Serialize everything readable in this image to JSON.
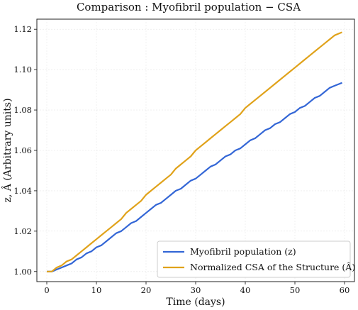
{
  "chart_data": {
    "type": "line",
    "title": "Comparison :  Myofibril population − CSA",
    "xlabel": "Time (days)",
    "ylabel": "z,  Â (Arbitrary units)",
    "xlim": [
      -2,
      62
    ],
    "ylim": [
      0.995,
      1.125
    ],
    "xticks": [
      0,
      10,
      20,
      30,
      40,
      50,
      60
    ],
    "yticks": [
      1.0,
      1.02,
      1.04,
      1.06,
      1.08,
      1.1,
      1.12
    ],
    "grid": true,
    "legend_position": "lower-right",
    "series": [
      {
        "name": "Myofibril population (z)",
        "color": "#3366d6",
        "x": [
          0,
          1,
          2,
          3,
          4,
          5,
          6,
          7,
          8,
          9,
          10,
          11,
          12,
          13,
          14,
          15,
          16,
          17,
          18,
          19,
          20,
          21,
          22,
          23,
          24,
          25,
          26,
          27,
          28,
          29,
          30,
          31,
          32,
          33,
          34,
          35,
          36,
          37,
          38,
          39,
          40,
          41,
          42,
          43,
          44,
          45,
          46,
          47,
          48,
          49,
          50,
          51,
          52,
          53,
          54,
          55,
          56,
          57,
          58,
          59,
          59.5
        ],
        "y": [
          1.0,
          1.0,
          1.001,
          1.002,
          1.003,
          1.004,
          1.006,
          1.007,
          1.009,
          1.01,
          1.012,
          1.013,
          1.015,
          1.017,
          1.019,
          1.02,
          1.022,
          1.024,
          1.025,
          1.027,
          1.029,
          1.031,
          1.033,
          1.034,
          1.036,
          1.038,
          1.04,
          1.041,
          1.043,
          1.045,
          1.046,
          1.048,
          1.05,
          1.052,
          1.053,
          1.055,
          1.057,
          1.058,
          1.06,
          1.061,
          1.063,
          1.065,
          1.066,
          1.068,
          1.07,
          1.071,
          1.073,
          1.074,
          1.076,
          1.078,
          1.079,
          1.081,
          1.082,
          1.084,
          1.086,
          1.087,
          1.089,
          1.091,
          1.092,
          1.093,
          1.0935
        ]
      },
      {
        "name": "Normalized CSA of the Structure (Â)",
        "color": "#e0a21a",
        "x": [
          0,
          1,
          2,
          3,
          4,
          5,
          6,
          7,
          8,
          9,
          10,
          11,
          12,
          13,
          14,
          15,
          16,
          17,
          18,
          19,
          20,
          21,
          22,
          23,
          24,
          25,
          26,
          27,
          28,
          29,
          30,
          31,
          32,
          33,
          34,
          35,
          36,
          37,
          38,
          39,
          40,
          41,
          42,
          43,
          44,
          45,
          46,
          47,
          48,
          49,
          50,
          51,
          52,
          53,
          54,
          55,
          56,
          57,
          58,
          59,
          59.5
        ],
        "y": [
          1.0,
          1.0,
          1.002,
          1.003,
          1.005,
          1.006,
          1.008,
          1.01,
          1.012,
          1.014,
          1.016,
          1.018,
          1.02,
          1.022,
          1.024,
          1.026,
          1.029,
          1.031,
          1.033,
          1.035,
          1.038,
          1.04,
          1.042,
          1.044,
          1.046,
          1.048,
          1.051,
          1.053,
          1.055,
          1.057,
          1.06,
          1.062,
          1.064,
          1.066,
          1.068,
          1.07,
          1.072,
          1.074,
          1.076,
          1.078,
          1.081,
          1.083,
          1.085,
          1.087,
          1.089,
          1.091,
          1.093,
          1.095,
          1.097,
          1.099,
          1.101,
          1.103,
          1.105,
          1.107,
          1.109,
          1.111,
          1.113,
          1.115,
          1.117,
          1.118,
          1.1185
        ]
      }
    ]
  }
}
